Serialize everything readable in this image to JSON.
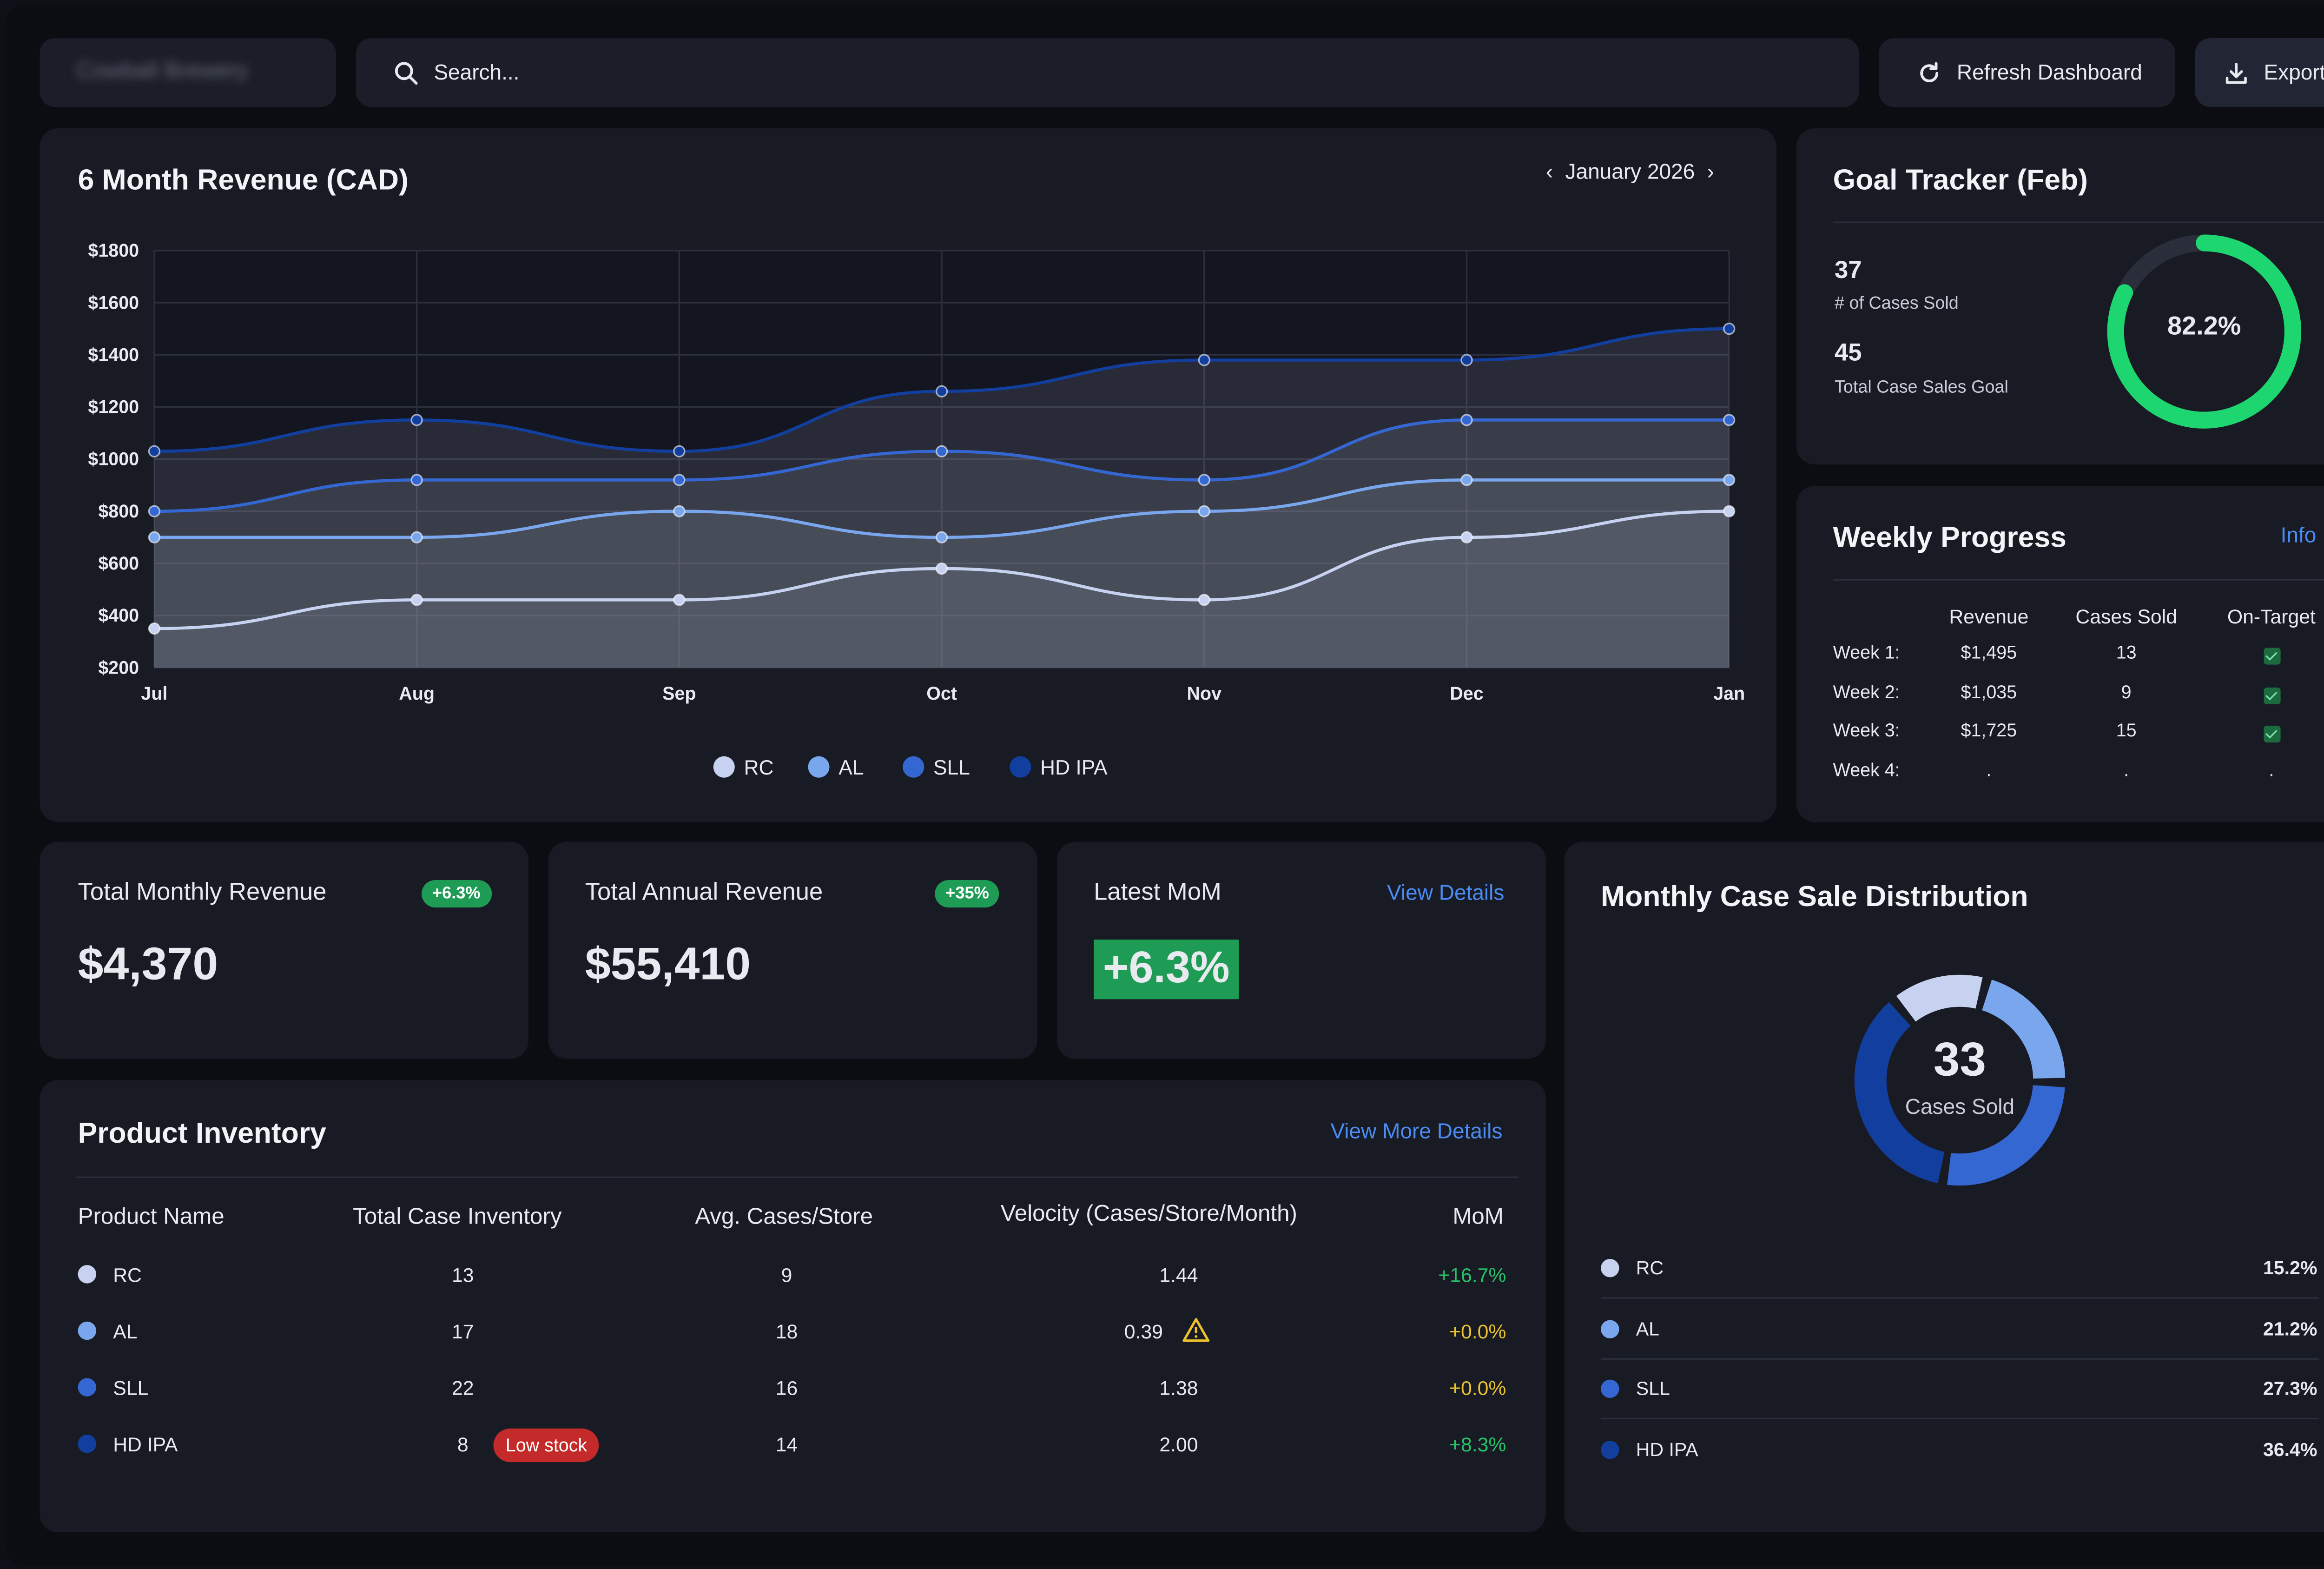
{
  "header": {
    "brand": "Cowball Brewery",
    "search_placeholder": "Search...",
    "refresh_label": "Refresh Dashboard",
    "export_label": "Export"
  },
  "revenue_chart": {
    "title": "6 Month Revenue (CAD)",
    "period": "January 2026"
  },
  "chart_data": {
    "type": "area",
    "title": "6 Month Revenue (CAD)",
    "categories": [
      "Jul",
      "Aug",
      "Sep",
      "Oct",
      "Nov",
      "Dec",
      "Jan"
    ],
    "yticks": [
      "$1800",
      "$1600",
      "$1400",
      "$1200",
      "$1000",
      "$800",
      "$600",
      "$400",
      "$200"
    ],
    "ylim": [
      200,
      1800
    ],
    "grid": true,
    "legend": "bottom",
    "series": [
      {
        "name": "RC",
        "color": "#c6d2ef",
        "values": [
          350,
          460,
          460,
          580,
          460,
          700,
          800
        ]
      },
      {
        "name": "AL",
        "color": "#7aa6ee",
        "values": [
          700,
          700,
          800,
          700,
          800,
          920,
          920
        ]
      },
      {
        "name": "SLL",
        "color": "#3567d2",
        "values": [
          800,
          920,
          920,
          1030,
          920,
          1150,
          1150
        ]
      },
      {
        "name": "HD IPA",
        "color": "#123f9e",
        "values": [
          1030,
          1150,
          1030,
          1260,
          1380,
          1380,
          1500
        ]
      }
    ]
  },
  "goal": {
    "title": "Goal Tracker (Feb)",
    "sold_value": "37",
    "sold_label": "# of Cases Sold",
    "goal_value": "45",
    "goal_label": "Total Case Sales Goal",
    "percent_label": "82.2%",
    "percent": 82.2,
    "color": "#1ed66f"
  },
  "weekly": {
    "title": "Weekly Progress",
    "info_label": "Info",
    "columns": [
      "Revenue",
      "Cases Sold",
      "On-Target"
    ],
    "rows": [
      {
        "week": "Week 1:",
        "revenue": "$1,495",
        "cases": "13",
        "on_target": true
      },
      {
        "week": "Week 2:",
        "revenue": "$1,035",
        "cases": "9",
        "on_target": true
      },
      {
        "week": "Week 3:",
        "revenue": "$1,725",
        "cases": "15",
        "on_target": true
      },
      {
        "week": "Week 4:",
        "revenue": ".",
        "cases": ".",
        "on_target": "."
      }
    ]
  },
  "stats": {
    "monthly": {
      "label": "Total Monthly Revenue",
      "badge": "+6.3%",
      "value": "$4,370"
    },
    "annual": {
      "label": "Total Annual Revenue",
      "badge": "+35%",
      "value": "$55,410"
    },
    "mom": {
      "label": "Latest MoM",
      "link": "View Details",
      "value": "+6.3%"
    }
  },
  "inventory": {
    "title": "Product Inventory",
    "link": "View More Details",
    "columns": [
      "Product Name",
      "Total Case Inventory",
      "Avg. Cases/Store",
      "Velocity (Cases/Store/Month)",
      "MoM"
    ],
    "low_stock_label": "Low stock",
    "rows": [
      {
        "name": "RC",
        "color": "#c6d2ef",
        "inventory": "13",
        "avg": "9",
        "velocity": "1.44",
        "warn": false,
        "low": false,
        "mom": "+16.7%",
        "mom_color": "#27c36b"
      },
      {
        "name": "AL",
        "color": "#7aa6ee",
        "inventory": "17",
        "avg": "18",
        "velocity": "0.39",
        "warn": true,
        "low": false,
        "mom": "+0.0%",
        "mom_color": "#e9c22c"
      },
      {
        "name": "SLL",
        "color": "#3567d2",
        "inventory": "22",
        "avg": "16",
        "velocity": "1.38",
        "warn": false,
        "low": false,
        "mom": "+0.0%",
        "mom_color": "#e9c22c"
      },
      {
        "name": "HD IPA",
        "color": "#123f9e",
        "inventory": "8",
        "avg": "14",
        "velocity": "2.00",
        "warn": false,
        "low": true,
        "mom": "+8.3%",
        "mom_color": "#27c36b"
      }
    ]
  },
  "distribution": {
    "title": "Monthly Case Sale Distribution",
    "center_value": "33",
    "center_label": "Cases Sold",
    "items": [
      {
        "name": "RC",
        "pct": "15.2%",
        "value": 15.2,
        "color": "#c6d2ef"
      },
      {
        "name": "AL",
        "pct": "21.2%",
        "value": 21.2,
        "color": "#7aa6ee"
      },
      {
        "name": "SLL",
        "pct": "27.3%",
        "value": 27.3,
        "color": "#3567d2"
      },
      {
        "name": "HD IPA",
        "pct": "36.4%",
        "value": 36.4,
        "color": "#123f9e"
      }
    ]
  }
}
